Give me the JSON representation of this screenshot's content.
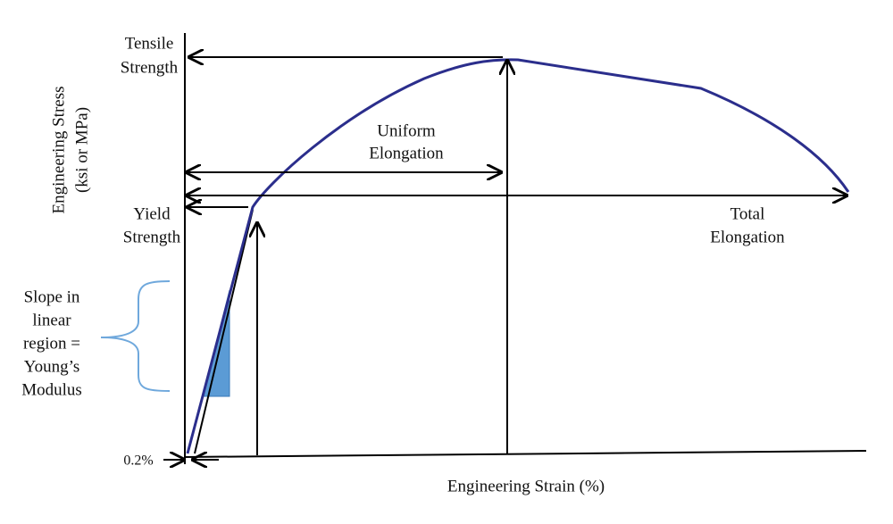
{
  "y_axis_label": [
    "Engineering Stress",
    "(ksi or MPa)"
  ],
  "x_axis_label": "Engineering Strain (%)",
  "tensile_strength": [
    "Tensile",
    "Strength"
  ],
  "uniform_elongation": [
    "Uniform",
    "Elongation"
  ],
  "yield_strength": [
    "Yield",
    "Strength"
  ],
  "total_elongation": [
    "Total",
    "Elongation"
  ],
  "youngs_modulus": [
    "Slope in",
    "linear",
    "region =",
    "Young’s",
    "Modulus"
  ],
  "offset": "0.2%"
}
